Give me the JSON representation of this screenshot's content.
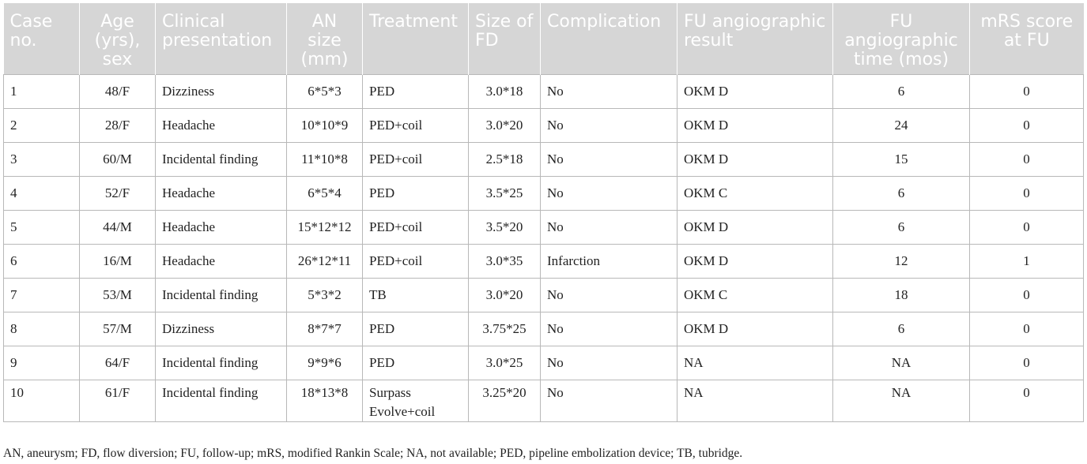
{
  "table": {
    "headers": [
      "Case no.",
      "Age (yrs), sex",
      "Clinical presentation",
      "AN size (mm)",
      "Treatment",
      "Size of FD",
      "Complication",
      "FU angiographic result",
      "FU angiographic time (mos)",
      "mRS score at FU"
    ],
    "rows": [
      [
        "1",
        "48/F",
        "Dizziness",
        "6*5*3",
        "PED",
        "3.0*18",
        "No",
        "OKM D",
        "6",
        "0"
      ],
      [
        "2",
        "28/F",
        "Headache",
        "10*10*9",
        "PED+coil",
        "3.0*20",
        "No",
        "OKM D",
        "24",
        "0"
      ],
      [
        "3",
        "60/M",
        "Incidental finding",
        "11*10*8",
        "PED+coil",
        "2.5*18",
        "No",
        "OKM D",
        "15",
        "0"
      ],
      [
        "4",
        "52/F",
        "Headache",
        "6*5*4",
        "PED",
        "3.5*25",
        "No",
        "OKM C",
        "6",
        "0"
      ],
      [
        "5",
        "44/M",
        "Headache",
        "15*12*12",
        "PED+coil",
        "3.5*20",
        "No",
        "OKM D",
        "6",
        "0"
      ],
      [
        "6",
        "16/M",
        "Headache",
        "26*12*11",
        "PED+coil",
        "3.0*35",
        "Infarction",
        "OKM D",
        "12",
        "1"
      ],
      [
        "7",
        "53/M",
        "Incidental finding",
        "5*3*2",
        "TB",
        "3.0*20",
        "No",
        "OKM C",
        "18",
        "0"
      ],
      [
        "8",
        "57/M",
        "Dizziness",
        "8*7*7",
        "PED",
        "3.75*25",
        "No",
        "OKM D",
        "6",
        "0"
      ],
      [
        "9",
        "64/F",
        "Incidental finding",
        "9*9*6",
        "PED",
        "3.0*25",
        "No",
        "NA",
        "NA",
        "0"
      ],
      [
        "10",
        "61/F",
        "Incidental finding",
        "18*13*8",
        "Surpass Evolve+coil",
        "3.25*20",
        "No",
        "NA",
        "NA",
        "0"
      ]
    ]
  },
  "footnote": "AN, aneurysm; FD, flow diversion; FU, follow-up; mRS, modified Rankin Scale; NA, not available; PED, pipeline embolization device; TB, tubridge.",
  "colors": {
    "header_bg": "#d6d6d6",
    "header_text": "#ffffff",
    "grid": "#b8b8b8"
  }
}
